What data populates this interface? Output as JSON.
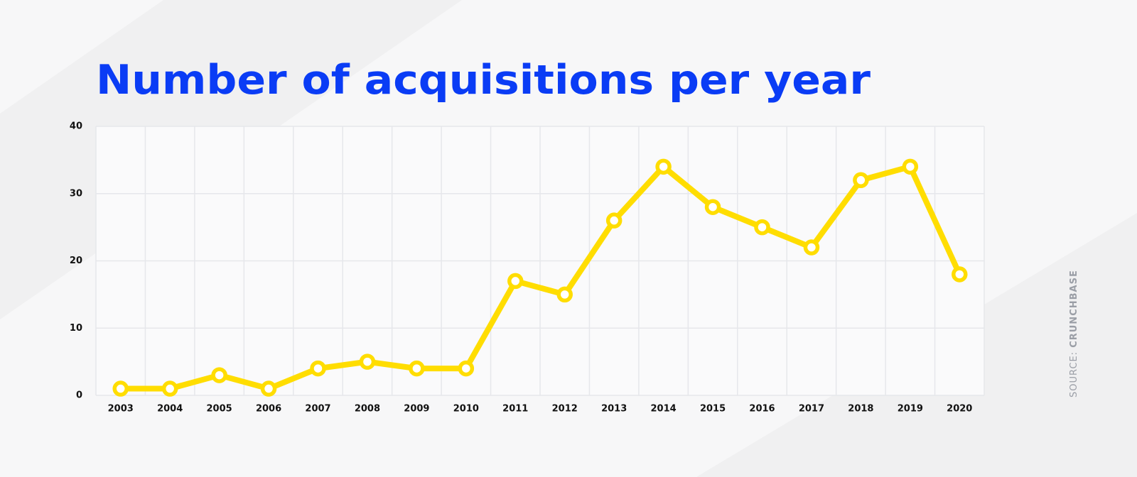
{
  "chart_data": {
    "type": "line",
    "title": "Number of acquisitions per year",
    "categories": [
      "2003",
      "2004",
      "2005",
      "2006",
      "2007",
      "2008",
      "2009",
      "2010",
      "2011",
      "2012",
      "2013",
      "2014",
      "2015",
      "2016",
      "2017",
      "2018",
      "2019",
      "2020"
    ],
    "values": [
      1,
      1,
      3,
      1,
      4,
      5,
      4,
      4,
      17,
      15,
      26,
      34,
      28,
      25,
      22,
      32,
      34,
      18
    ],
    "color": "#ffdd00",
    "ylim": [
      0,
      40
    ],
    "yticks": [
      0,
      10,
      20,
      30,
      40
    ],
    "grid": true,
    "source_label": "SOURCE:",
    "source": "CRUNCHBASE"
  }
}
